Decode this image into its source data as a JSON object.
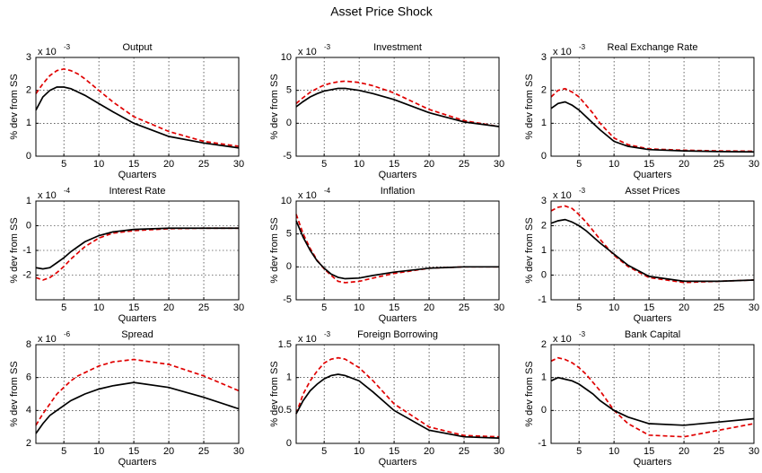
{
  "title": "Asset Price Shock",
  "chart_data": [
    {
      "type": "line",
      "title": "Output",
      "y_label": "% dev from SS",
      "x_label": "Quarters",
      "multiplier": {
        "base": "x 10",
        "power": -3
      },
      "x": [
        1,
        2,
        3,
        4,
        5,
        6,
        7,
        8,
        10,
        12,
        15,
        20,
        25,
        30
      ],
      "xlim": [
        1,
        30
      ],
      "xticks": [
        5,
        10,
        15,
        20,
        25,
        30
      ],
      "ylim": [
        0,
        3
      ],
      "yticks": [
        0,
        1,
        2,
        3
      ],
      "grid": true,
      "series": [
        {
          "color": "#e00000",
          "dash": true,
          "values": [
            1.9,
            2.2,
            2.45,
            2.6,
            2.65,
            2.6,
            2.5,
            2.35,
            2.0,
            1.65,
            1.2,
            0.75,
            0.45,
            0.3
          ]
        },
        {
          "color": "#000000",
          "dash": false,
          "values": [
            1.4,
            1.8,
            2.0,
            2.1,
            2.1,
            2.05,
            1.95,
            1.85,
            1.6,
            1.35,
            1.0,
            0.6,
            0.4,
            0.25
          ]
        }
      ]
    },
    {
      "type": "line",
      "title": "Investment",
      "y_label": "% dev from SS",
      "x_label": "Quarters",
      "multiplier": {
        "base": "x 10",
        "power": -3
      },
      "x": [
        1,
        2,
        3,
        4,
        5,
        6,
        7,
        8,
        10,
        12,
        15,
        20,
        25,
        30
      ],
      "xlim": [
        1,
        30
      ],
      "xticks": [
        5,
        10,
        15,
        20,
        25,
        30
      ],
      "ylim": [
        -5,
        10
      ],
      "yticks": [
        -5,
        0,
        5,
        10
      ],
      "grid": true,
      "series": [
        {
          "color": "#e00000",
          "dash": true,
          "values": [
            3,
            3.9,
            4.7,
            5.3,
            5.8,
            6.1,
            6.3,
            6.4,
            6.2,
            5.7,
            4.6,
            2.1,
            0.4,
            -0.5
          ]
        },
        {
          "color": "#000000",
          "dash": false,
          "values": [
            2.5,
            3.3,
            4.0,
            4.5,
            4.9,
            5.1,
            5.3,
            5.3,
            5.0,
            4.5,
            3.6,
            1.6,
            0.2,
            -0.5
          ]
        }
      ]
    },
    {
      "type": "line",
      "title": "Real Exchange Rate",
      "y_label": "% dev from SS",
      "x_label": "Quarters",
      "multiplier": {
        "base": "x 10",
        "power": -3
      },
      "x": [
        1,
        2,
        3,
        4,
        5,
        6,
        7,
        8,
        10,
        12,
        15,
        20,
        25,
        30
      ],
      "xlim": [
        1,
        30
      ],
      "xticks": [
        5,
        10,
        15,
        20,
        25,
        30
      ],
      "ylim": [
        0,
        3
      ],
      "yticks": [
        0,
        1,
        2,
        3
      ],
      "grid": true,
      "series": [
        {
          "color": "#e00000",
          "dash": true,
          "values": [
            1.8,
            2.0,
            2.05,
            1.95,
            1.8,
            1.55,
            1.3,
            1.0,
            0.55,
            0.35,
            0.22,
            0.18,
            0.16,
            0.15
          ]
        },
        {
          "color": "#000000",
          "dash": false,
          "values": [
            1.45,
            1.6,
            1.65,
            1.55,
            1.4,
            1.2,
            1.0,
            0.8,
            0.45,
            0.3,
            0.2,
            0.16,
            0.14,
            0.13
          ]
        }
      ]
    },
    {
      "type": "line",
      "title": "Interest Rate",
      "y_label": "% dev from SS",
      "x_label": "Quarters",
      "multiplier": {
        "base": "x 10",
        "power": -4
      },
      "x": [
        1,
        2,
        3,
        4,
        5,
        6,
        7,
        8,
        10,
        12,
        15,
        20,
        25,
        30
      ],
      "xlim": [
        1,
        30
      ],
      "xticks": [
        5,
        10,
        15,
        20,
        25,
        30
      ],
      "ylim": [
        -3,
        1
      ],
      "yticks": [
        -2,
        -1,
        0,
        1
      ],
      "grid": true,
      "series": [
        {
          "color": "#e00000",
          "dash": true,
          "values": [
            -2.1,
            -2.2,
            -2.1,
            -1.9,
            -1.65,
            -1.35,
            -1.1,
            -0.85,
            -0.5,
            -0.3,
            -0.2,
            -0.12,
            -0.1,
            -0.1
          ]
        },
        {
          "color": "#000000",
          "dash": false,
          "values": [
            -1.7,
            -1.75,
            -1.7,
            -1.5,
            -1.3,
            -1.05,
            -0.85,
            -0.65,
            -0.4,
            -0.25,
            -0.15,
            -0.1,
            -0.1,
            -0.1
          ]
        }
      ]
    },
    {
      "type": "line",
      "title": "Inflation",
      "y_label": "% dev from SS",
      "x_label": "Quarters",
      "multiplier": {
        "base": "x 10",
        "power": -4
      },
      "x": [
        1,
        2,
        3,
        4,
        5,
        6,
        7,
        8,
        10,
        12,
        15,
        20,
        25,
        30
      ],
      "xlim": [
        1,
        30
      ],
      "xticks": [
        5,
        10,
        15,
        20,
        25,
        30
      ],
      "ylim": [
        -5,
        10
      ],
      "yticks": [
        -5,
        0,
        5,
        10
      ],
      "grid": true,
      "series": [
        {
          "color": "#e00000",
          "dash": true,
          "values": [
            8,
            5,
            2.8,
            1,
            -0.3,
            -1.3,
            -2.2,
            -2.4,
            -2.2,
            -1.7,
            -1,
            -0.2,
            0,
            0
          ]
        },
        {
          "color": "#000000",
          "dash": false,
          "values": [
            7,
            4.5,
            2.5,
            0.9,
            -0.2,
            -1.1,
            -1.6,
            -1.8,
            -1.7,
            -1.3,
            -0.8,
            -0.2,
            0,
            0
          ]
        }
      ]
    },
    {
      "type": "line",
      "title": "Asset Prices",
      "y_label": "% dev from SS",
      "x_label": "Quarters",
      "multiplier": {
        "base": "x 10",
        "power": -3
      },
      "x": [
        1,
        2,
        3,
        4,
        5,
        6,
        7,
        8,
        10,
        12,
        15,
        20,
        25,
        30
      ],
      "xlim": [
        1,
        30
      ],
      "xticks": [
        5,
        10,
        15,
        20,
        25,
        30
      ],
      "ylim": [
        -1,
        3
      ],
      "yticks": [
        -1,
        0,
        1,
        2,
        3
      ],
      "grid": true,
      "series": [
        {
          "color": "#e00000",
          "dash": true,
          "values": [
            2.6,
            2.75,
            2.8,
            2.7,
            2.45,
            2.15,
            1.8,
            1.45,
            0.8,
            0.35,
            -0.1,
            -0.3,
            -0.25,
            -0.2
          ]
        },
        {
          "color": "#000000",
          "dash": false,
          "values": [
            2.1,
            2.2,
            2.25,
            2.15,
            2.0,
            1.8,
            1.55,
            1.3,
            0.85,
            0.4,
            -0.05,
            -0.25,
            -0.25,
            -0.2
          ]
        }
      ]
    },
    {
      "type": "line",
      "title": "Spread",
      "y_label": "% dev from SS",
      "x_label": "Quarters",
      "multiplier": {
        "base": "x 10",
        "power": -6
      },
      "x": [
        1,
        2,
        3,
        4,
        5,
        6,
        7,
        8,
        10,
        12,
        15,
        20,
        25,
        30
      ],
      "xlim": [
        1,
        30
      ],
      "xticks": [
        5,
        10,
        15,
        20,
        25,
        30
      ],
      "ylim": [
        2,
        8
      ],
      "yticks": [
        2,
        4,
        6,
        8
      ],
      "grid": true,
      "series": [
        {
          "color": "#e00000",
          "dash": true,
          "values": [
            3.1,
            3.8,
            4.4,
            5.0,
            5.4,
            5.8,
            6.1,
            6.3,
            6.7,
            6.95,
            7.1,
            6.8,
            6.1,
            5.2
          ]
        },
        {
          "color": "#000000",
          "dash": false,
          "values": [
            2.6,
            3.2,
            3.7,
            4.0,
            4.3,
            4.6,
            4.8,
            5.0,
            5.3,
            5.5,
            5.7,
            5.4,
            4.8,
            4.1
          ]
        }
      ]
    },
    {
      "type": "line",
      "title": "Foreign Borrowing",
      "y_label": "% dev from SS",
      "x_label": "Quarters",
      "multiplier": {
        "base": "x 10",
        "power": -3
      },
      "x": [
        1,
        2,
        3,
        4,
        5,
        6,
        7,
        8,
        10,
        12,
        15,
        20,
        25,
        30
      ],
      "xlim": [
        1,
        30
      ],
      "xticks": [
        5,
        10,
        15,
        20,
        25,
        30
      ],
      "ylim": [
        0,
        1.5
      ],
      "yticks": [
        0,
        0.5,
        1,
        1.5
      ],
      "grid": true,
      "series": [
        {
          "color": "#e00000",
          "dash": true,
          "values": [
            0.45,
            0.75,
            0.95,
            1.1,
            1.22,
            1.28,
            1.3,
            1.28,
            1.15,
            0.95,
            0.6,
            0.25,
            0.12,
            0.1
          ]
        },
        {
          "color": "#000000",
          "dash": false,
          "values": [
            0.45,
            0.65,
            0.8,
            0.9,
            0.98,
            1.03,
            1.05,
            1.03,
            0.95,
            0.78,
            0.5,
            0.2,
            0.1,
            0.08
          ]
        }
      ]
    },
    {
      "type": "line",
      "title": "Bank Capital",
      "y_label": "% dev from SS",
      "x_label": "Quarters",
      "multiplier": {
        "base": "x 10",
        "power": -3
      },
      "x": [
        1,
        2,
        3,
        4,
        5,
        6,
        7,
        8,
        10,
        12,
        15,
        20,
        25,
        30
      ],
      "xlim": [
        1,
        30
      ],
      "xticks": [
        5,
        10,
        15,
        20,
        25,
        30
      ],
      "ylim": [
        -1,
        2
      ],
      "yticks": [
        -1,
        0,
        1,
        2
      ],
      "grid": true,
      "series": [
        {
          "color": "#e00000",
          "dash": true,
          "values": [
            1.5,
            1.6,
            1.55,
            1.45,
            1.3,
            1.1,
            0.85,
            0.6,
            0,
            -0.4,
            -0.75,
            -0.8,
            -0.6,
            -0.4
          ]
        },
        {
          "color": "#000000",
          "dash": false,
          "values": [
            0.9,
            1.0,
            0.95,
            0.9,
            0.8,
            0.65,
            0.5,
            0.3,
            0,
            -0.2,
            -0.4,
            -0.45,
            -0.35,
            -0.25
          ]
        }
      ]
    }
  ]
}
